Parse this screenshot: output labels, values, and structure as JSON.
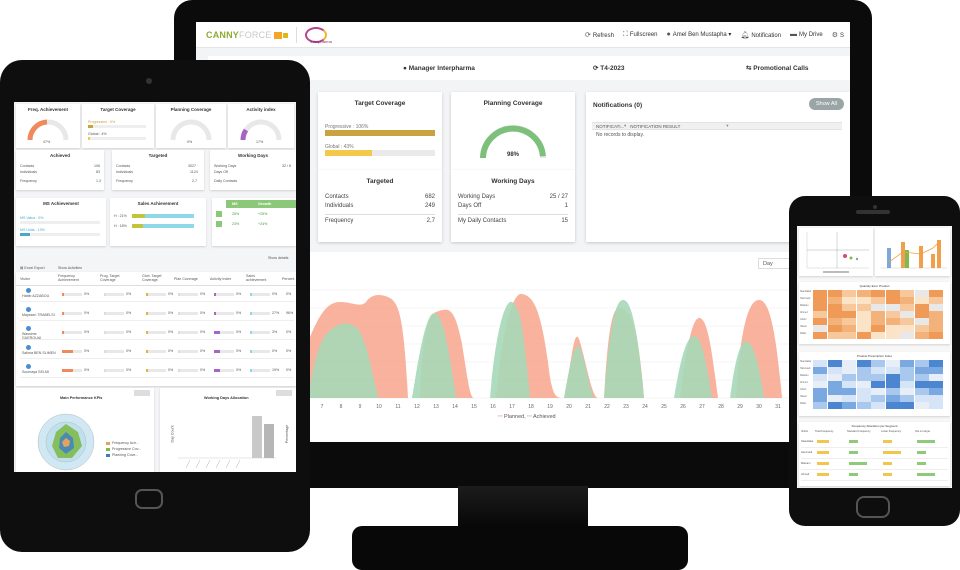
{
  "desktop": {
    "topbar": {
      "logo_main": "CANNY",
      "logo_sub": "FORCE",
      "brand2": "interpharma",
      "nav": [
        {
          "icon": "refresh-icon",
          "label": "Refresh"
        },
        {
          "icon": "fullscreen-icon",
          "label": "Fullscreen"
        },
        {
          "icon": "user-icon",
          "label": "Amel Ben Mustapha"
        },
        {
          "icon": "bell-icon",
          "label": "Notification"
        },
        {
          "icon": "folder-icon",
          "label": "My Drive"
        },
        {
          "icon": "gear-icon",
          "label": "S"
        }
      ]
    },
    "infobar": {
      "manager": "Manager Interpharma",
      "period": "T4-2023",
      "calls": "Promotional Calls"
    },
    "target_coverage": {
      "title": "Target Coverage",
      "progressive_label": "Progressive : 106%",
      "progressive_pct": 100,
      "global_label": "Global : 43%",
      "global_pct": 43
    },
    "planning_coverage": {
      "title": "Planning Coverage",
      "value": "98%",
      "pct": 98
    },
    "targeted": {
      "title": "Targeted",
      "rows": [
        {
          "label": "Contacts",
          "value": "682"
        },
        {
          "label": "Individuals",
          "value": "249"
        },
        {
          "label": "Frequency",
          "value": "2,7"
        }
      ]
    },
    "working_days": {
      "title": "Working Days",
      "rows": [
        {
          "label": "Working Days",
          "value": "25 / 27"
        },
        {
          "label": "Days Off",
          "value": "1"
        },
        {
          "label": "My Daily Contacts",
          "value": "15"
        }
      ]
    },
    "notifications": {
      "title": "Notifications (0)",
      "show_all": "Show All",
      "col1": "NOTIFICATI...",
      "col2": "NOTIFICATION RESULT",
      "empty": "No records to display."
    },
    "area_chart": {
      "select_value": "Day",
      "x_ticks": [
        "7",
        "8",
        "9",
        "10",
        "11",
        "12",
        "13",
        "14",
        "15",
        "16",
        "17",
        "18",
        "19",
        "20",
        "21",
        "22",
        "23",
        "24",
        "25",
        "26",
        "27",
        "28",
        "29",
        "30",
        "31"
      ],
      "legend_planned": "Planned",
      "legend_achieved": "Achieved",
      "color_planned": "#f7a48c",
      "color_achieved": "#a6d8b8"
    }
  },
  "tablet": {
    "gauges": [
      {
        "title": "Freq. Achievement",
        "value": "47%",
        "pct": 47,
        "color": "#f08a5d"
      },
      {
        "title": "Target Coverage",
        "value": "",
        "pct": 0,
        "color": "#e3b341"
      },
      {
        "title": "Planning Coverage",
        "value": "0%",
        "pct": 0,
        "color": "#8fc98f"
      },
      {
        "title": "Activity index",
        "value": "17%",
        "pct": 17,
        "color": "#a465c6"
      }
    ],
    "target_cov_lines": [
      "Progressive : 9%",
      "Global : 4%"
    ],
    "achieved": {
      "title": "Achieved",
      "rows": [
        [
          "Contacts",
          "106"
        ],
        [
          "Individuals",
          "83"
        ],
        [
          "Frequency",
          "1,3"
        ]
      ]
    },
    "targeted": {
      "title": "Targeted",
      "rows": [
        [
          "Contacts",
          "3027"
        ],
        [
          "Individuals",
          "1124"
        ],
        [
          "Frequency",
          "2,7"
        ]
      ]
    },
    "working": {
      "title": "Working Days",
      "rows": [
        [
          "Working Days",
          "32 / 6"
        ],
        [
          "Days Off",
          ""
        ],
        [
          "Daily Contacts",
          "8"
        ]
      ]
    },
    "ms": {
      "title": "MS Achievement",
      "lines": [
        "MS Value : 0%",
        "MS Units : 13%"
      ]
    },
    "sales": {
      "title": "Sales Achievement",
      "lines": [
        "H : 21%",
        "H : 18%"
      ]
    },
    "ms_table": {
      "headers": [
        "MS",
        "Growth"
      ],
      "rows": [
        [
          "25%",
          "+25%"
        ],
        [
          "23%",
          "+24%"
        ]
      ]
    },
    "show_details": "Show details",
    "toolbar": [
      "Excel Export",
      "Show Activities"
    ],
    "table_headers": [
      "Visitor",
      "Frequency Achievement",
      "Prog. Target Coverage",
      "Glob. Target Coverage",
      "Plan Coverage",
      "Activity Index",
      "Sales achievement",
      "Percent"
    ],
    "table_rows": [
      {
        "name": "Habib AZZABOU",
        "c1": "0%",
        "c2": "0%",
        "c3": "0%",
        "c4": "0%",
        "c5": "0%",
        "c6": "0%",
        "c7": "0%"
      },
      {
        "name": "Mayssen TRABELSI",
        "c1": "0%",
        "c2": "0%",
        "c3": "0%",
        "c4": "0%",
        "c5": "0%",
        "c6": "27%",
        "c7": "96%"
      },
      {
        "name": "Wassime GUEROUAI",
        "c1": "0%",
        "c2": "0%",
        "c3": "0%",
        "c4": "0%",
        "c5": "0%",
        "c6": "3%",
        "c7": "0%"
      },
      {
        "name": "Salima BEN SLIMEN",
        "c1": "0%",
        "c2": "0%",
        "c3": "0%",
        "c4": "0%",
        "c5": "0%",
        "c6": "0%",
        "c7": "0%"
      },
      {
        "name": "Soumaya SELMI",
        "c1": "0%",
        "c2": "0%",
        "c3": "0%",
        "c4": "0%",
        "c5": "0%",
        "c6": "19%",
        "c7": "0%"
      }
    ],
    "kpi_title": "Main Performance KPIs",
    "alloc_title": "Working Days Allocation",
    "kpi_legend": [
      "Frequency Ach...",
      "Progressive Cov...",
      "Planning Cove..."
    ],
    "alloc_ylabel": "Day Count",
    "alloc_ylabel2": "Percentage"
  },
  "phone": {
    "heatmap1_title": "Quantity Evol. Product",
    "heatmap2_title": "Product Prescription Index",
    "table_title": "Frequency Allocation per Segment",
    "table_headers": [
      "Visitor",
      "Total Frequency",
      "Standard Frequency",
      "Lower Frequency",
      "Not on target"
    ],
    "row_labels": [
      "Skandakar",
      "Hammadi",
      "Makram",
      "Ahmed",
      "Ghazi",
      "Hatem",
      "Walid"
    ]
  }
}
